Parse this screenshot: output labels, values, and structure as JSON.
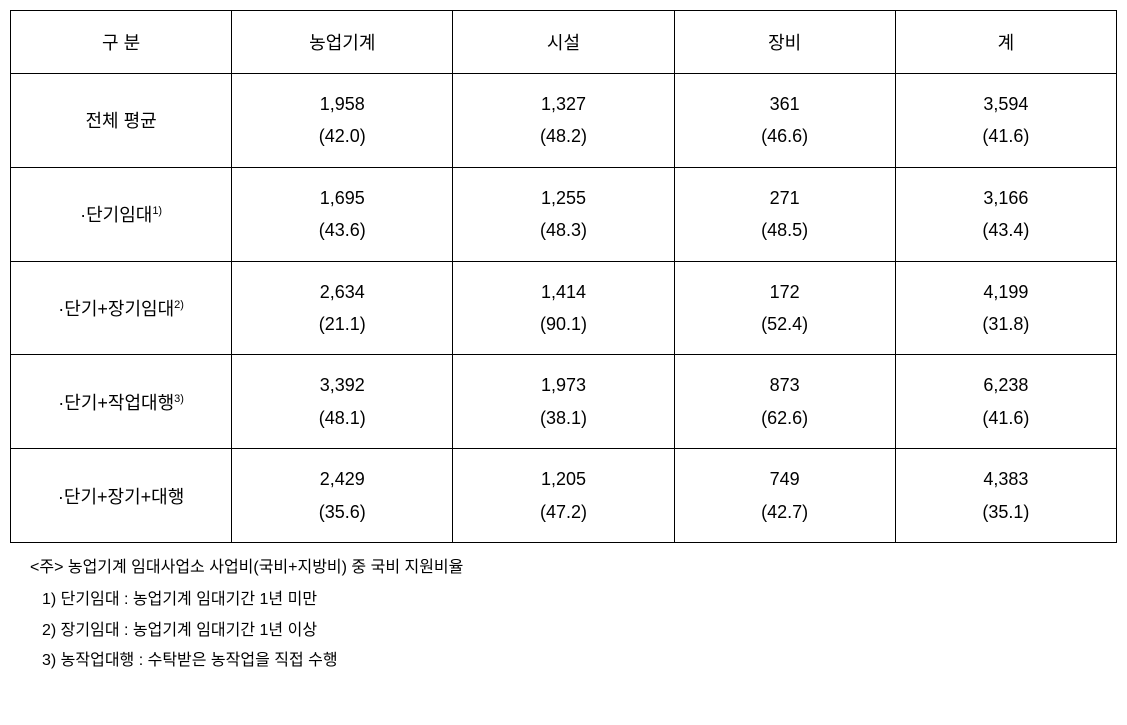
{
  "table": {
    "columns": [
      "구 분",
      "농업기계",
      "시설",
      "장비",
      "계"
    ],
    "rows": [
      {
        "label": "전체 평균",
        "sup": "",
        "cells": [
          {
            "value": "1,958",
            "pct": "(42.0)"
          },
          {
            "value": "1,327",
            "pct": "(48.2)"
          },
          {
            "value": "361",
            "pct": "(46.6)"
          },
          {
            "value": "3,594",
            "pct": "(41.6)"
          }
        ]
      },
      {
        "label": "·단기임대",
        "sup": "1)",
        "cells": [
          {
            "value": "1,695",
            "pct": "(43.6)"
          },
          {
            "value": "1,255",
            "pct": "(48.3)"
          },
          {
            "value": "271",
            "pct": "(48.5)"
          },
          {
            "value": "3,166",
            "pct": "(43.4)"
          }
        ]
      },
      {
        "label": "·단기+장기임대",
        "sup": "2)",
        "cells": [
          {
            "value": "2,634",
            "pct": "(21.1)"
          },
          {
            "value": "1,414",
            "pct": "(90.1)"
          },
          {
            "value": "172",
            "pct": "(52.4)"
          },
          {
            "value": "4,199",
            "pct": "(31.8)"
          }
        ]
      },
      {
        "label": "·단기+작업대행",
        "sup": "3)",
        "cells": [
          {
            "value": "3,392",
            "pct": "(48.1)"
          },
          {
            "value": "1,973",
            "pct": "(38.1)"
          },
          {
            "value": "873",
            "pct": "(62.6)"
          },
          {
            "value": "6,238",
            "pct": "(41.6)"
          }
        ]
      },
      {
        "label": "·단기+장기+대행",
        "sup": "",
        "cells": [
          {
            "value": "2,429",
            "pct": "(35.6)"
          },
          {
            "value": "1,205",
            "pct": "(47.2)"
          },
          {
            "value": "749",
            "pct": "(42.7)"
          },
          {
            "value": "4,383",
            "pct": "(35.1)"
          }
        ]
      }
    ]
  },
  "footnotes": {
    "main": "<주> 농업기계 임대사업소 사업비(국비+지방비) 중 국비 지원비율",
    "items": [
      "1) 단기임대 : 농업기계 임대기간 1년 미만",
      "2) 장기임대 : 농업기계 임대기간 1년 이상",
      "3) 농작업대행 : 수탁받은 농작업을 직접 수행"
    ]
  },
  "styling": {
    "font_family": "Malgun Gothic",
    "header_fontsize": 18,
    "cell_fontsize": 18,
    "footnote_fontsize": 16,
    "border_color": "#000000",
    "background_color": "#ffffff",
    "text_color": "#000000",
    "column_widths": [
      "21%",
      "19.75%",
      "19.75%",
      "19.75%",
      "19.75%"
    ]
  }
}
